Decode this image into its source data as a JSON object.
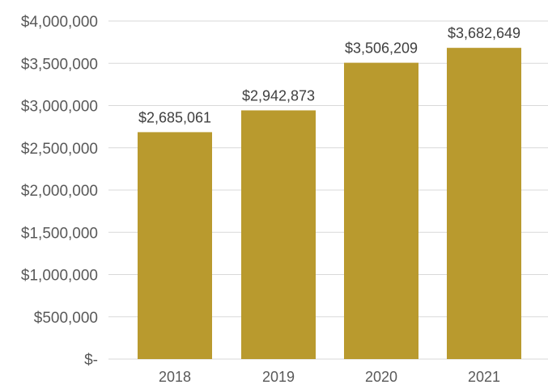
{
  "chart_data": {
    "type": "bar",
    "categories": [
      "2018",
      "2019",
      "2020",
      "2021"
    ],
    "values": [
      2685061,
      2942873,
      3506209,
      3682649
    ],
    "data_labels": [
      "$2,685,061",
      "$2,942,873",
      "$3,506,209",
      "$3,682,649"
    ],
    "y_ticks": [
      0,
      500000,
      1000000,
      1500000,
      2000000,
      2500000,
      3000000,
      3500000,
      4000000
    ],
    "y_tick_labels": [
      "$-",
      "$500,000",
      "$1,000,000",
      "$1,500,000",
      "$2,000,000",
      "$2,500,000",
      "$3,000,000",
      "$3,500,000",
      "$4,000,000"
    ],
    "ylim": [
      0,
      4000000
    ],
    "grid": true,
    "legend": "none",
    "bar_color": "#B99A2E",
    "grid_color": "#D9D9D9",
    "text_color": "#595959"
  }
}
